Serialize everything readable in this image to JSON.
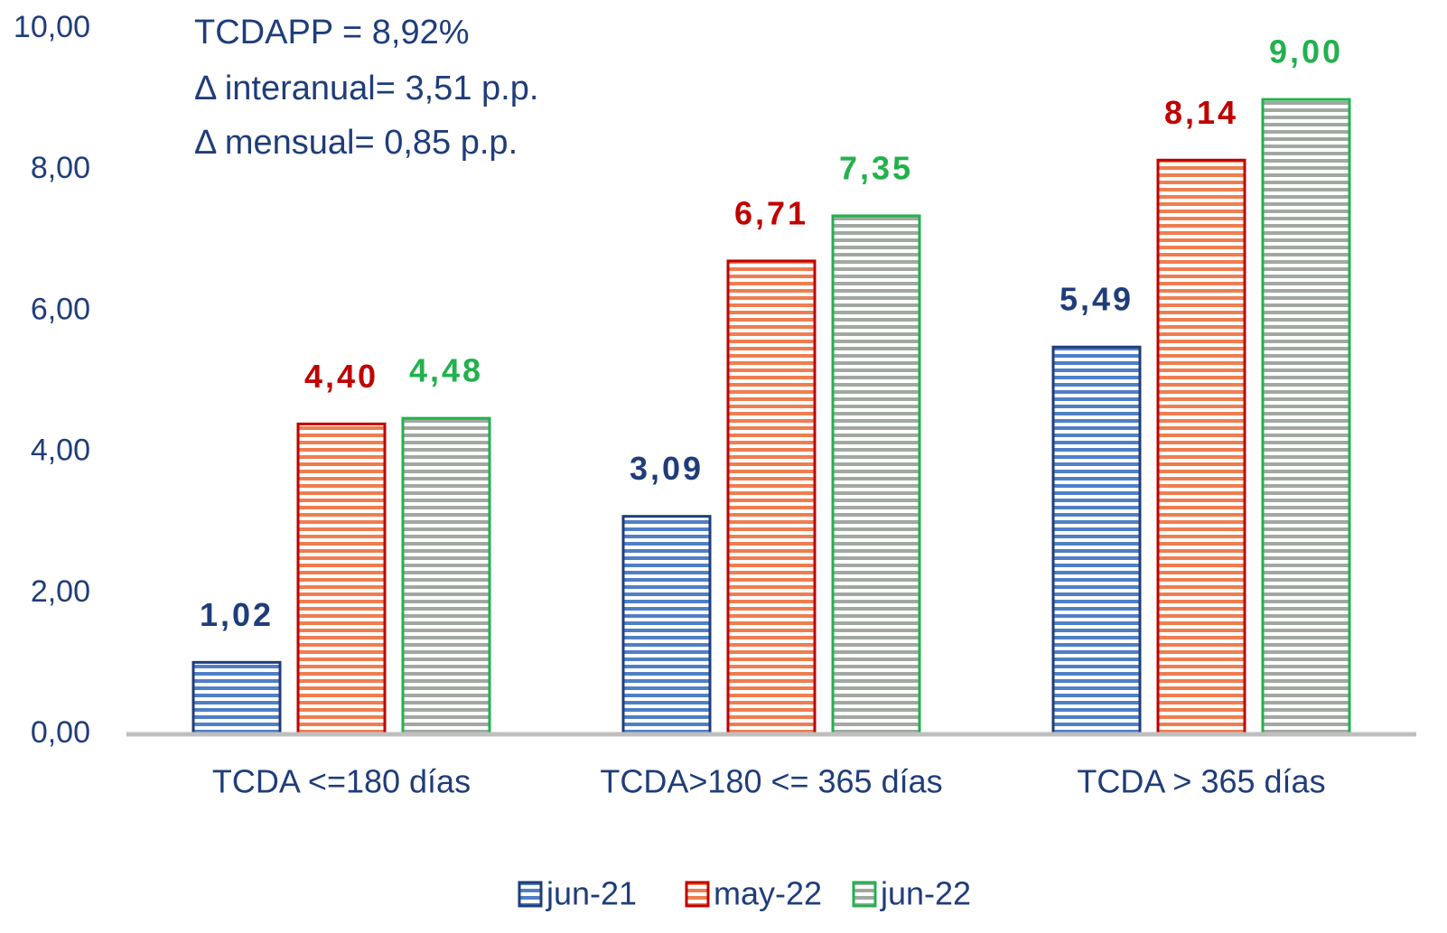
{
  "chart_data": {
    "type": "bar",
    "annotations": [
      "TCDAPP = 8,92%",
      "Δ interanual= 3,51 p.p.",
      "Δ mensual= 0,85 p.p."
    ],
    "categories": [
      "TCDA <=180 días",
      "TCDA>180 <= 365 días",
      "TCDA > 365 días"
    ],
    "series": [
      {
        "name": "jun-21",
        "color": "#1f3d7a",
        "values": [
          1.02,
          3.09,
          5.49
        ],
        "value_labels": [
          "1,02",
          "3,09",
          "5,49"
        ]
      },
      {
        "name": "may-22",
        "color": "#c00000",
        "values": [
          4.4,
          6.71,
          8.14
        ],
        "value_labels": [
          "4,40",
          "6,71",
          "8,14"
        ]
      },
      {
        "name": "jun-22",
        "color": "#22b14c",
        "values": [
          4.48,
          7.35,
          9.0
        ],
        "value_labels": [
          "4,48",
          "7,35",
          "9,00"
        ]
      }
    ],
    "ylim": [
      0,
      10
    ],
    "yticks": [
      {
        "value": 0,
        "label": "0,00"
      },
      {
        "value": 2,
        "label": "2,00"
      },
      {
        "value": 4,
        "label": "4,00"
      },
      {
        "value": 6,
        "label": "6,00"
      },
      {
        "value": 8,
        "label": "8,00"
      },
      {
        "value": 10,
        "label": "10,00"
      }
    ],
    "grid": false,
    "legend": "bottom"
  }
}
